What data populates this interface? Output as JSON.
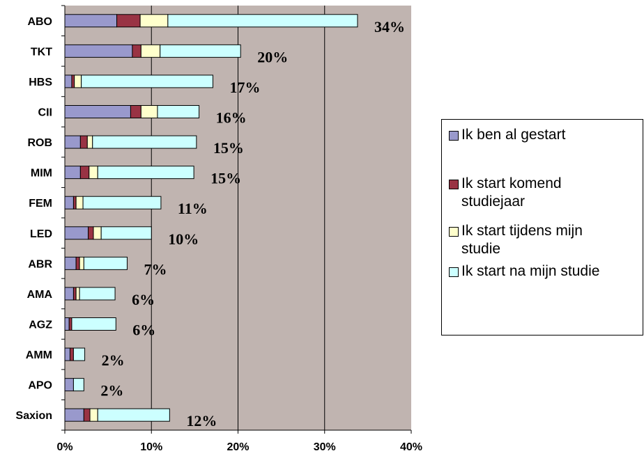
{
  "chart_data": {
    "type": "bar",
    "orientation": "horizontal",
    "stacked": true,
    "categories": [
      "ABO",
      "TKT",
      "HBS",
      "CII",
      "ROB",
      "MIM",
      "FEM",
      "LED",
      "ABR",
      "AMA",
      "AGZ",
      "AMM",
      "APO",
      "Saxion"
    ],
    "series": [
      {
        "name": "Ik ben al gestart",
        "color": "#9999CC",
        "values": [
          6.0,
          7.8,
          0.8,
          7.6,
          1.8,
          1.8,
          1.0,
          2.7,
          1.3,
          1.0,
          0.5,
          0.6,
          1.0,
          2.2
        ]
      },
      {
        "name": "Ik start komend studiejaar",
        "color": "#993344",
        "values": [
          2.7,
          1.0,
          0.3,
          1.2,
          0.8,
          1.0,
          0.3,
          0.6,
          0.4,
          0.3,
          0.3,
          0.4,
          0.0,
          0.7
        ]
      },
      {
        "name": "Ik start tijdens mijn studie",
        "color": "#FFFFCC",
        "values": [
          3.2,
          2.2,
          0.8,
          1.9,
          0.6,
          1.0,
          0.8,
          0.9,
          0.5,
          0.4,
          0.0,
          0.0,
          0.0,
          0.9
        ]
      },
      {
        "name": "Ik start na mijn studie",
        "color": "#CCFFFF",
        "values": [
          21.9,
          9.3,
          15.2,
          4.8,
          12.0,
          11.1,
          9.0,
          5.8,
          5.0,
          4.1,
          5.1,
          1.3,
          1.2,
          8.3
        ]
      }
    ],
    "totals": [
      "34%",
      "20%",
      "17%",
      "16%",
      "15%",
      "15%",
      "11%",
      "10%",
      "7%",
      "6%",
      "6%",
      "2%",
      "2%",
      "12%"
    ],
    "xlim": [
      0,
      40
    ],
    "xticks": [
      "0%",
      "10%",
      "20%",
      "30%",
      "40%"
    ],
    "grid": true,
    "plot_background": "#C0B4B0",
    "legend_position": "right"
  }
}
